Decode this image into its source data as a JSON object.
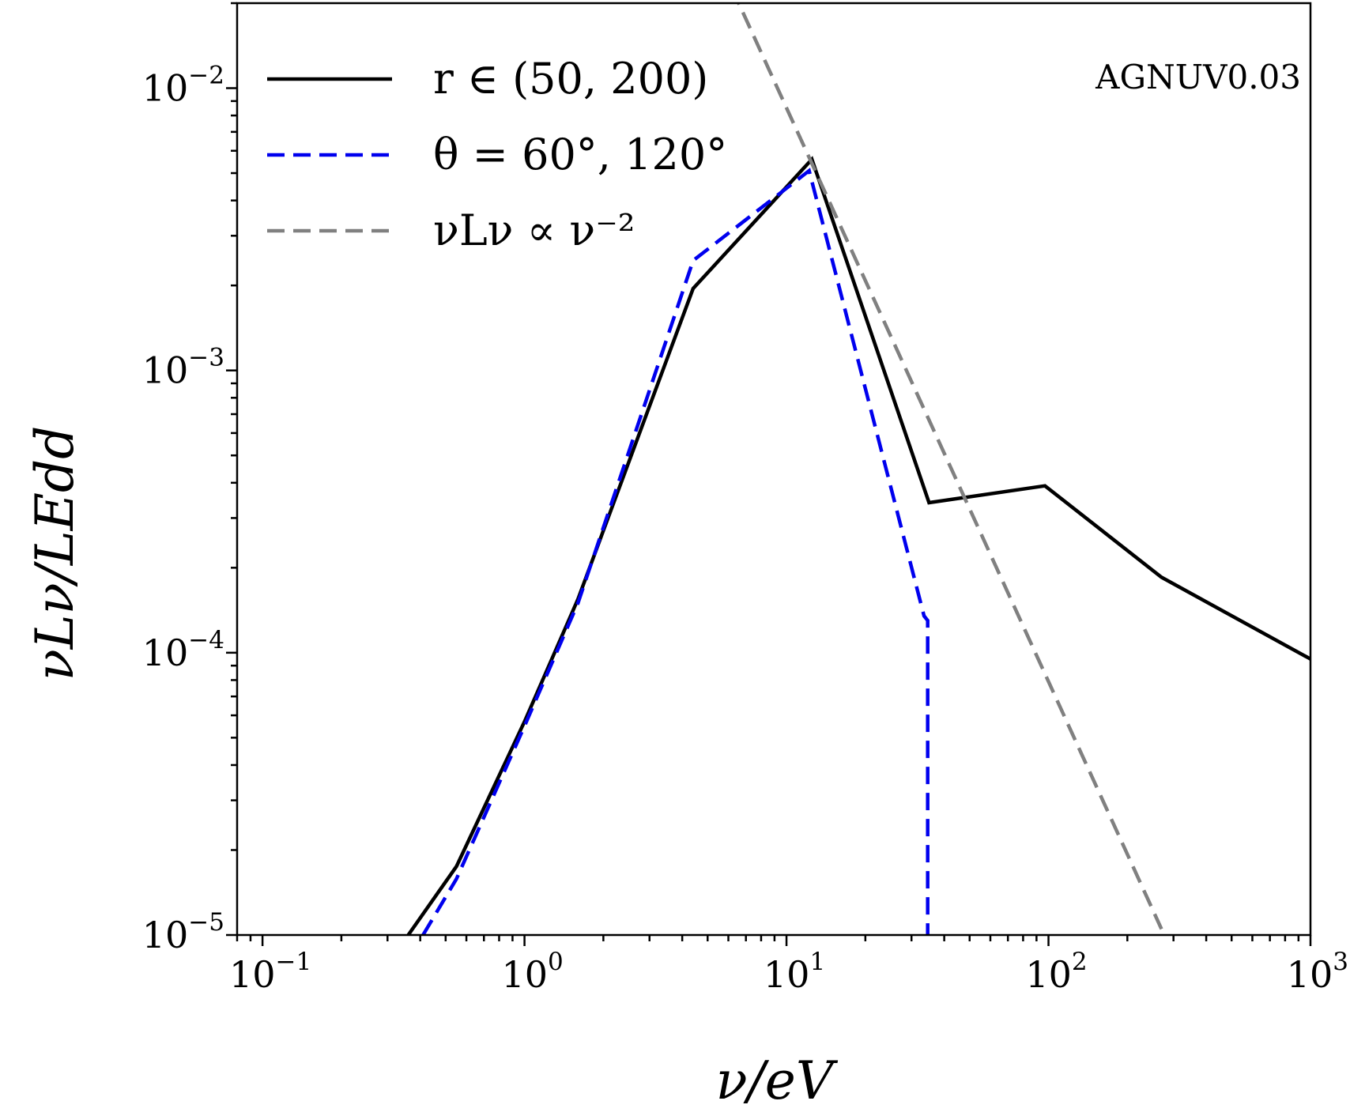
{
  "chart_data": {
    "type": "line",
    "title": "",
    "annotation": "AGNUV0.03",
    "xlabel": "ν/eV",
    "ylabel": "νLν/LEdd",
    "xscale": "log",
    "yscale": "log",
    "xlim": [
      0.08,
      1000
    ],
    "ylim": [
      1e-05,
      0.02
    ],
    "grid": false,
    "legend_position": "top-left",
    "x_ticks": [
      {
        "value": 0.1,
        "base": "10",
        "exp": "−1"
      },
      {
        "value": 1,
        "base": "10",
        "exp": "0"
      },
      {
        "value": 10,
        "base": "10",
        "exp": "1"
      },
      {
        "value": 100,
        "base": "10",
        "exp": "2"
      },
      {
        "value": 1000,
        "base": "10",
        "exp": "3"
      }
    ],
    "y_ticks": [
      {
        "value": 1e-05,
        "base": "10",
        "exp": "−5"
      },
      {
        "value": 0.0001,
        "base": "10",
        "exp": "−4"
      },
      {
        "value": 0.001,
        "base": "10",
        "exp": "−3"
      },
      {
        "value": 0.01,
        "base": "10",
        "exp": "−2"
      }
    ],
    "series": [
      {
        "name": "r ∈ (50, 200)",
        "color": "#000000",
        "style": "solid",
        "x": [
          0.36,
          0.55,
          1.0,
          1.6,
          4.4,
          12.5,
          35,
          97,
          270,
          1000
        ],
        "y": [
          1e-05,
          1.75e-05,
          5.7e-05,
          0.000155,
          0.00195,
          0.0056,
          0.00034,
          0.00039,
          0.000185,
          9.5e-05
        ]
      },
      {
        "name": "θ = 60°, 120°",
        "color": "#0000ee",
        "style": "dashed",
        "x": [
          0.41,
          0.55,
          1.0,
          1.6,
          4.4,
          12.2,
          33.5,
          34.6,
          34.6
        ],
        "y": [
          1e-05,
          1.58e-05,
          5.5e-05,
          0.00015,
          0.00245,
          0.0051,
          0.000135,
          0.00013,
          1e-05
        ]
      },
      {
        "name": "νLν ∝ ν⁻²",
        "color": "#808080",
        "style": "dashed",
        "x": [
          6.2,
          270
        ],
        "y": [
          0.0225,
          1.05e-05
        ]
      }
    ]
  }
}
